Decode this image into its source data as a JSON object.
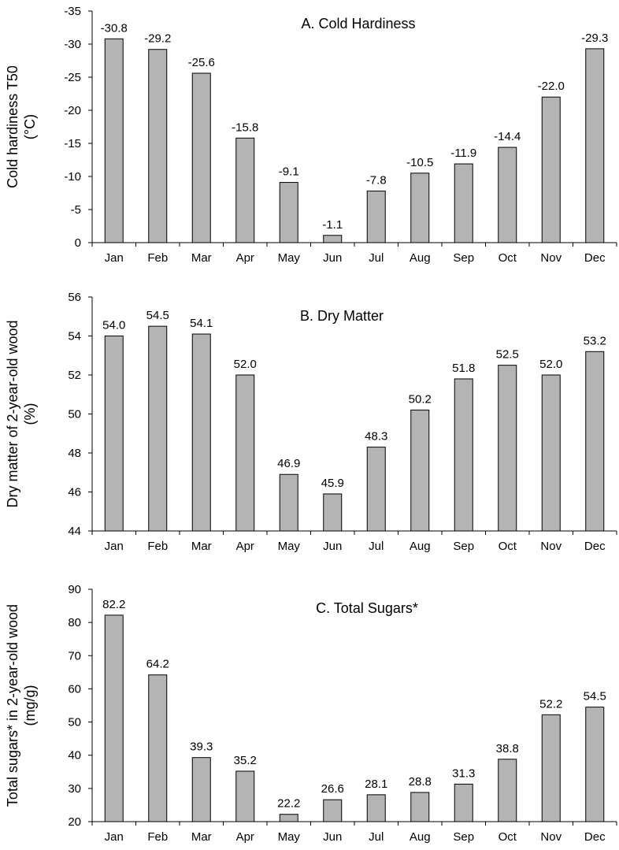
{
  "chart_data": [
    {
      "type": "bar",
      "title": "A.  Cold Hardiness",
      "ylabel": [
        "Cold hardiness T50",
        "(°C)"
      ],
      "categories": [
        "Jan",
        "Feb",
        "Mar",
        "Apr",
        "May",
        "Jun",
        "Jul",
        "Aug",
        "Sep",
        "Oct",
        "Nov",
        "Dec"
      ],
      "values": [
        -30.8,
        -29.2,
        -25.6,
        -15.8,
        -9.1,
        -1.1,
        -7.8,
        -10.5,
        -11.9,
        -14.4,
        -22.0,
        -29.3
      ],
      "data_labels": [
        "-30.8",
        "-29.2",
        "-25.6",
        "-15.8",
        "-9.1",
        "-1.1",
        "-7.8",
        "-10.5",
        "-11.9",
        "-14.4",
        "-22.0",
        "-29.3"
      ],
      "ylim": [
        0,
        -35
      ],
      "yticks": [
        0,
        -5,
        -10,
        -15,
        -20,
        -25,
        -30,
        -35
      ],
      "ytick_labels": [
        "0",
        "-5",
        "-10",
        "-15",
        "-20",
        "-25",
        "-30",
        "-35"
      ],
      "y_axis_inverted": true,
      "grid": false
    },
    {
      "type": "bar",
      "title": "B.  Dry Matter",
      "ylabel": [
        "Dry matter of 2-year-old wood",
        "(%)"
      ],
      "categories": [
        "Jan",
        "Feb",
        "Mar",
        "Apr",
        "May",
        "Jun",
        "Jul",
        "Aug",
        "Sep",
        "Oct",
        "Nov",
        "Dec"
      ],
      "values": [
        54.0,
        54.5,
        54.1,
        52.0,
        46.9,
        45.9,
        48.3,
        50.2,
        51.8,
        52.5,
        52.0,
        53.2
      ],
      "data_labels": [
        "54.0",
        "54.5",
        "54.1",
        "52.0",
        "46.9",
        "45.9",
        "48.3",
        "50.2",
        "51.8",
        "52.5",
        "52.0",
        "53.2"
      ],
      "ylim": [
        44,
        56
      ],
      "yticks": [
        44,
        46,
        48,
        50,
        52,
        54,
        56
      ],
      "ytick_labels": [
        "44",
        "46",
        "48",
        "50",
        "52",
        "54",
        "56"
      ],
      "grid": false
    },
    {
      "type": "bar",
      "title": "C.  Total Sugars*",
      "ylabel": [
        "Total sugars* in 2-year-old wood",
        "(mg/g)"
      ],
      "categories": [
        "Jan",
        "Feb",
        "Mar",
        "Apr",
        "May",
        "Jun",
        "Jul",
        "Aug",
        "Sep",
        "Oct",
        "Nov",
        "Dec"
      ],
      "values": [
        82.2,
        64.2,
        39.3,
        35.2,
        22.2,
        26.6,
        28.1,
        28.8,
        31.3,
        38.8,
        52.2,
        54.5
      ],
      "data_labels": [
        "82.2",
        "64.2",
        "39.3",
        "35.2",
        "22.2",
        "26.6",
        "28.1",
        "28.8",
        "31.3",
        "38.8",
        "52.2",
        "54.5"
      ],
      "ylim": [
        20,
        90
      ],
      "yticks": [
        20,
        30,
        40,
        50,
        60,
        70,
        80,
        90
      ],
      "ytick_labels": [
        "20",
        "30",
        "40",
        "50",
        "60",
        "70",
        "80",
        "90"
      ],
      "grid": false
    }
  ]
}
